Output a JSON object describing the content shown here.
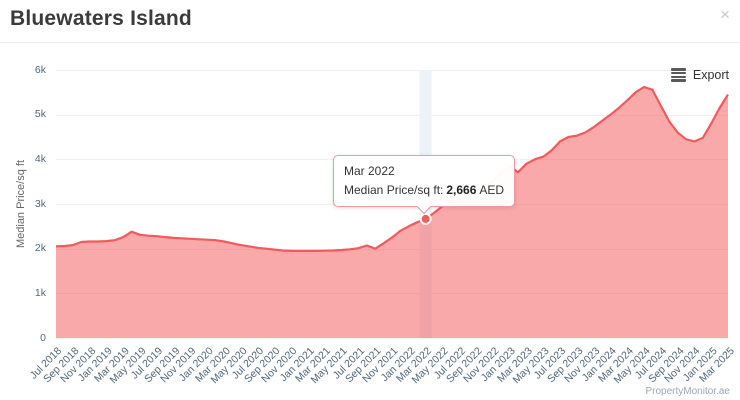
{
  "header": {
    "title": "Bluewaters Island",
    "close_glyph": "×"
  },
  "toolbar": {
    "export_label": "Export"
  },
  "watermark": "PropertyMonitor.ae",
  "tooltip": {
    "title": "Mar 2022",
    "label": "Median Price/sq ft:",
    "value": "2,666",
    "unit": "AED"
  },
  "colors": {
    "series": "#f4595b",
    "fill": "rgba(244,91,91,0.52)",
    "crosshair": "#edf1f8",
    "grid": "#f0f0f0",
    "axis_label": "#52677c",
    "marker_fill": "#f4595b",
    "marker_stroke": "#ffffff"
  },
  "chart_data": {
    "type": "area",
    "title": "Bluewaters Island",
    "xlabel": "",
    "ylabel": "Median Price/sq ft",
    "ylim": [
      0,
      6000
    ],
    "y_tick_step": 1000,
    "y_tick_labels": [
      "0",
      "1k",
      "2k",
      "3k",
      "4k",
      "5k",
      "6k"
    ],
    "grid": true,
    "legend": false,
    "x_tick_every": 2,
    "unit": "AED",
    "hover": {
      "index": 44,
      "category": "Mar 2022",
      "value": 2666
    },
    "categories": [
      "Jul 2018",
      "Aug 2018",
      "Sep 2018",
      "Oct 2018",
      "Nov 2018",
      "Dec 2018",
      "Jan 2019",
      "Feb 2019",
      "Mar 2019",
      "Apr 2019",
      "May 2019",
      "Jun 2019",
      "Jul 2019",
      "Aug 2019",
      "Sep 2019",
      "Oct 2019",
      "Nov 2019",
      "Dec 2019",
      "Jan 2020",
      "Feb 2020",
      "Mar 2020",
      "Apr 2020",
      "May 2020",
      "Jun 2020",
      "Jul 2020",
      "Aug 2020",
      "Sep 2020",
      "Oct 2020",
      "Nov 2020",
      "Dec 2020",
      "Jan 2021",
      "Feb 2021",
      "Mar 2021",
      "Apr 2021",
      "May 2021",
      "Jun 2021",
      "Jul 2021",
      "Aug 2021",
      "Sep 2021",
      "Oct 2021",
      "Nov 2021",
      "Dec 2021",
      "Jan 2022",
      "Feb 2022",
      "Mar 2022",
      "Apr 2022",
      "May 2022",
      "Jun 2022",
      "Jul 2022",
      "Aug 2022",
      "Sep 2022",
      "Oct 2022",
      "Nov 2022",
      "Dec 2022",
      "Jan 2023",
      "Feb 2023",
      "Mar 2023",
      "Apr 2023",
      "May 2023",
      "Jun 2023",
      "Jul 2023",
      "Aug 2023",
      "Sep 2023",
      "Oct 2023",
      "Nov 2023",
      "Dec 2023",
      "Jan 2024",
      "Feb 2024",
      "Mar 2024",
      "Apr 2024",
      "May 2024",
      "Jun 2024",
      "Jul 2024",
      "Aug 2024",
      "Sep 2024",
      "Oct 2024",
      "Nov 2024",
      "Dec 2024",
      "Jan 2025",
      "Feb 2025",
      "Mar 2025"
    ],
    "values": [
      2050,
      2060,
      2080,
      2150,
      2160,
      2160,
      2170,
      2190,
      2260,
      2380,
      2310,
      2290,
      2280,
      2260,
      2240,
      2230,
      2220,
      2210,
      2200,
      2190,
      2160,
      2120,
      2080,
      2050,
      2020,
      2000,
      1980,
      1960,
      1950,
      1950,
      1950,
      1950,
      1955,
      1960,
      1970,
      1985,
      2010,
      2070,
      2000,
      2120,
      2250,
      2400,
      2500,
      2590,
      2666,
      2800,
      2950,
      3100,
      3250,
      3350,
      3420,
      3400,
      3520,
      3700,
      3850,
      3710,
      3900,
      4000,
      4060,
      4200,
      4400,
      4500,
      4530,
      4600,
      4720,
      4860,
      5000,
      5150,
      5320,
      5500,
      5620,
      5560,
      5200,
      4850,
      4600,
      4450,
      4400,
      4480,
      4800,
      5150,
      5450
    ]
  }
}
